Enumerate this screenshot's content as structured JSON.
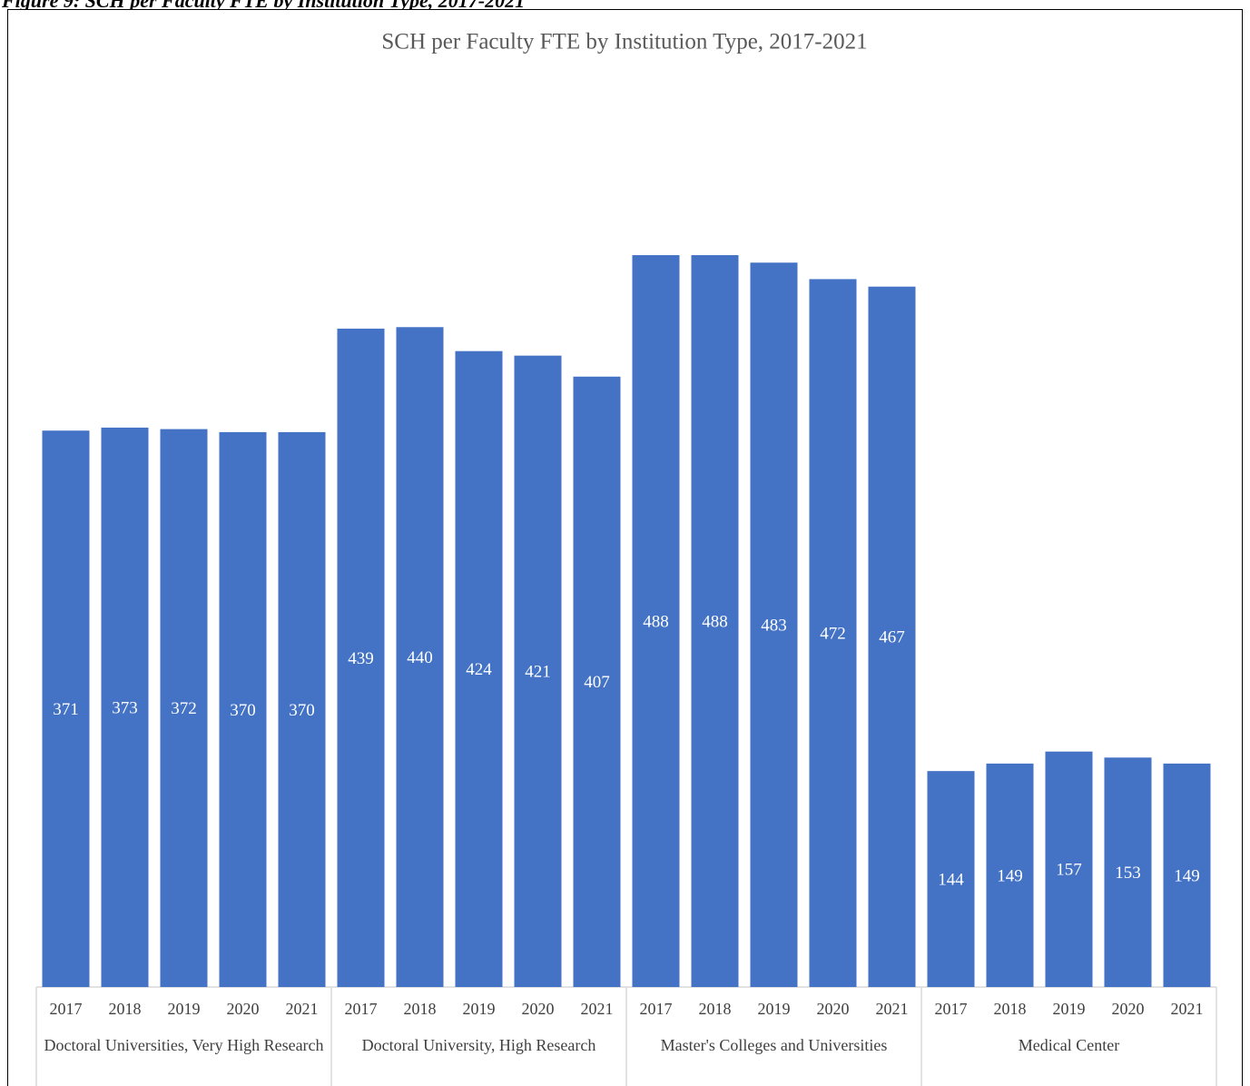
{
  "caption": "Figure 9: SCH per Faculty FTE by Institution Type, 2017-2021",
  "chart_data": {
    "type": "bar",
    "title": "SCH per Faculty FTE by Institution Type, 2017-2021",
    "color": "#4472c4",
    "ylim": [
      0,
      600
    ],
    "groups": [
      {
        "name": "Doctoral Universities, Very High Research",
        "categories": [
          "2017",
          "2018",
          "2019",
          "2020",
          "2021"
        ],
        "values": [
          371,
          373,
          372,
          370,
          370
        ]
      },
      {
        "name": "Doctoral University, High Research",
        "categories": [
          "2017",
          "2018",
          "2019",
          "2020",
          "2021"
        ],
        "values": [
          439,
          440,
          424,
          421,
          407
        ]
      },
      {
        "name": "Master's Colleges and Universities",
        "categories": [
          "2017",
          "2018",
          "2019",
          "2020",
          "2021"
        ],
        "values": [
          488,
          488,
          483,
          472,
          467
        ]
      },
      {
        "name": "Medical Center",
        "categories": [
          "2017",
          "2018",
          "2019",
          "2020",
          "2021"
        ],
        "values": [
          144,
          149,
          157,
          153,
          149
        ]
      }
    ]
  }
}
